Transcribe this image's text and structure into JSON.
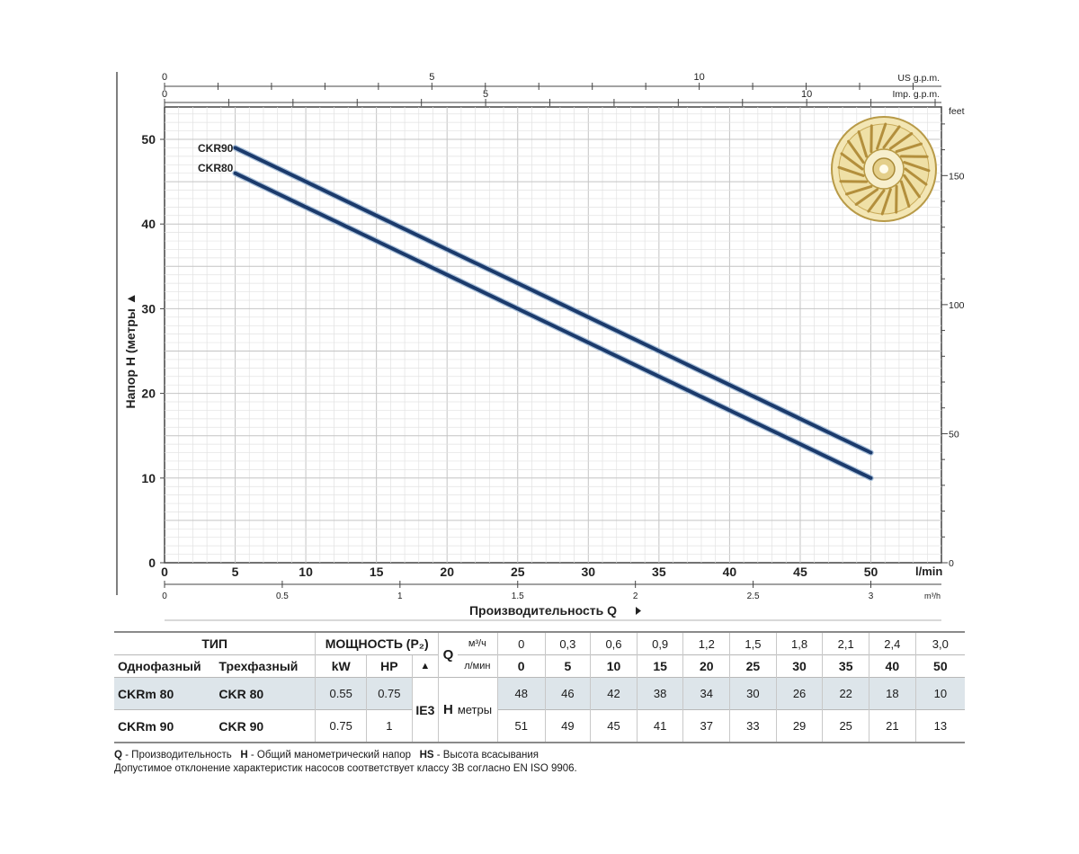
{
  "chart_data": {
    "type": "line",
    "ylabel": "Напор H (метры ▲",
    "xlabel_bottom": "Производительность Q",
    "x_unit_lmin": "l/min",
    "x_unit_m3h": "m³/h",
    "top_axis_us_label": "US g.p.m.",
    "top_axis_imp_label": "Imp. g.p.m.",
    "right_axis_label": "feet",
    "xlim": [
      0,
      55
    ],
    "ylim": [
      0,
      55
    ],
    "y_ticks": [
      "0",
      "10",
      "20",
      "30",
      "40",
      "50"
    ],
    "x_ticks_lmin": [
      "0",
      "5",
      "10",
      "15",
      "20",
      "25",
      "30",
      "35",
      "40",
      "45",
      "50"
    ],
    "x_ticks_m3h": [
      "0",
      "0.5",
      "1",
      "1.5",
      "2",
      "2.5",
      "3"
    ],
    "top_ticks_us": [
      "0",
      "5",
      "10"
    ],
    "top_ticks_imp": [
      "0",
      "5",
      "10"
    ],
    "right_ticks_feet": [
      "0",
      "50",
      "100",
      "150"
    ],
    "series": [
      {
        "name": "CKR90",
        "x": [
          5,
          10,
          15,
          20,
          25,
          30,
          35,
          40,
          45,
          50
        ],
        "y": [
          49,
          45,
          41,
          37,
          33,
          29,
          25,
          21,
          17,
          13
        ]
      },
      {
        "name": "CKR80",
        "x": [
          5,
          10,
          15,
          20,
          25,
          30,
          35,
          40,
          45,
          50
        ],
        "y": [
          46,
          42,
          38,
          34,
          30,
          26,
          22,
          18,
          14,
          10
        ]
      }
    ],
    "line_color": "#1b3a6b",
    "grid": true,
    "legend_placement": "top-left labels on curves"
  },
  "table": {
    "type_header": "ТИП",
    "power_header": "МОЩНОСТЬ (P₂)",
    "single_phase": "Однофазный",
    "three_phase": "Трехфазный",
    "kw": "kW",
    "hp": "HP",
    "triangle": "▲",
    "q_label": "Q",
    "m3h_unit": "м³/ч",
    "lmin_unit": "л/мин",
    "q_m3h": [
      "0",
      "0,3",
      "0,6",
      "0,9",
      "1,2",
      "1,5",
      "1,8",
      "2,1",
      "2,4",
      "3,0"
    ],
    "q_lmin": [
      "0",
      "5",
      "10",
      "15",
      "20",
      "25",
      "30",
      "35",
      "40",
      "50"
    ],
    "ie_class": "IE3",
    "h_label": "H",
    "h_unit": "метры",
    "rows": [
      {
        "single": "CKRm 80",
        "three": "CKR 80",
        "kw": "0.55",
        "hp": "0.75",
        "heads": [
          "48",
          "46",
          "42",
          "38",
          "34",
          "30",
          "26",
          "22",
          "18",
          "10"
        ]
      },
      {
        "single": "CKRm 90",
        "three": "CKR 90",
        "kw": "0.75",
        "hp": "1",
        "heads": [
          "51",
          "49",
          "45",
          "41",
          "37",
          "33",
          "29",
          "25",
          "21",
          "13"
        ]
      }
    ]
  },
  "notes": {
    "q_key": "Q",
    "q_text": " - Производительность",
    "h_key": "H",
    "h_text": " - Общий манометрический напор",
    "hs_key": "HS",
    "hs_text": " - Высота всасывания",
    "line2": "Допустимое отклонение характеристик насосов соответствует классу 3B согласно EN ISO 9906."
  }
}
